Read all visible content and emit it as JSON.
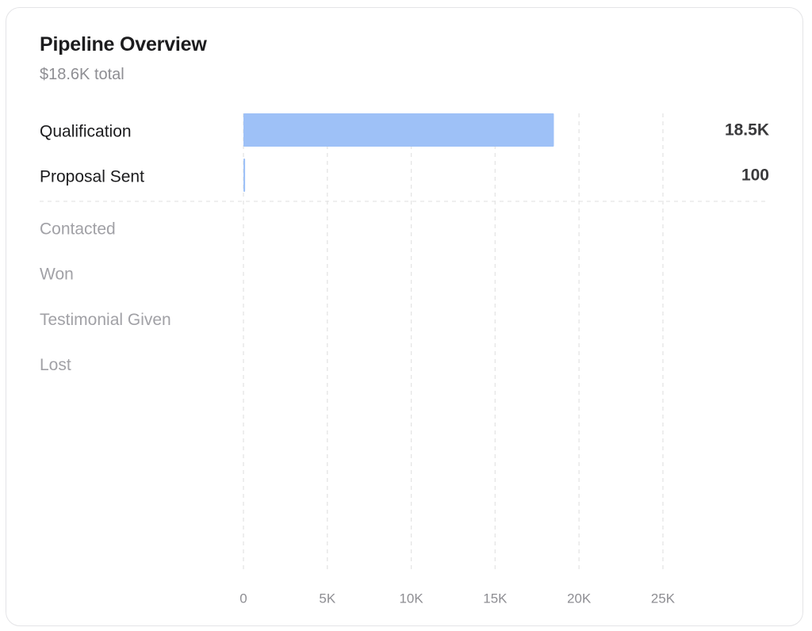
{
  "card": {
    "title": "Pipeline Overview",
    "subtitle": "$18.6K total"
  },
  "chart_data": {
    "type": "bar",
    "orientation": "horizontal",
    "categories": [
      "Qualification",
      "Proposal Sent",
      "Contacted",
      "Won",
      "Testimonial Given",
      "Lost"
    ],
    "values": [
      18500,
      100,
      0,
      0,
      0,
      0
    ],
    "value_labels": [
      "18.5K",
      "100",
      "",
      "",
      "",
      ""
    ],
    "active_categories": [
      "Qualification",
      "Proposal Sent"
    ],
    "x_ticks": [
      0,
      5000,
      10000,
      15000,
      20000,
      25000
    ],
    "x_tick_labels": [
      "0",
      "5K",
      "10K",
      "15K",
      "20K",
      "25K"
    ],
    "xlim": [
      0,
      25000
    ],
    "grid": "vertical-dashed",
    "legend": "none",
    "colors": {
      "bar": "#9ec1f7",
      "active_label": "#1c1c1e",
      "inactive_label": "#a1a1a6",
      "value_label": "#3a3a3c",
      "tick_label": "#8e8e93",
      "grid": "#e5e5e5"
    }
  }
}
